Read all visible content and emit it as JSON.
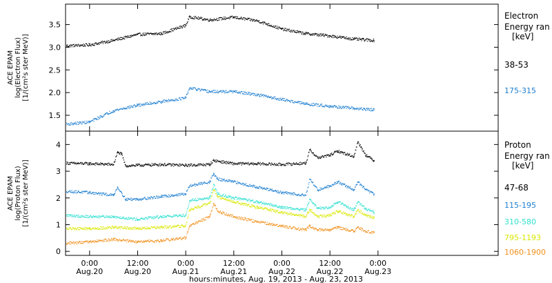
{
  "chart_data": {
    "type": "scatter",
    "xlabel": "hours:minutes, Aug. 19, 2013 - Aug. 23, 2013",
    "x_range_hours": [
      -6,
      102
    ],
    "x_ticks": [
      {
        "hours": 0,
        "time": "0:00",
        "date": "Aug.20"
      },
      {
        "hours": 12,
        "time": "12:00",
        "date": "Aug.20"
      },
      {
        "hours": 24,
        "time": "0:00",
        "date": "Aug.21"
      },
      {
        "hours": 36,
        "time": "12:00",
        "date": "Aug.21"
      },
      {
        "hours": 48,
        "time": "0:00",
        "date": "Aug.22"
      },
      {
        "hours": 60,
        "time": "12:00",
        "date": "Aug.22"
      },
      {
        "hours": 72,
        "time": "0:00",
        "date": "Aug.23"
      }
    ],
    "panels": [
      {
        "id": "electron",
        "ylabel_lines": [
          "ACE EPAM",
          "log(Electron Flux)",
          "[1/(cm²s ster MeV)]"
        ],
        "ylim": [
          1.15,
          3.95
        ],
        "y_ticks": [
          "1.5",
          "2.0",
          "2.5",
          "3.0",
          "3.5"
        ],
        "legend_title_lines": [
          "Electron",
          "Energy ran",
          "[keV]"
        ],
        "series": [
          {
            "name": "38-53",
            "color": "#000000",
            "x": [
              -6,
              0,
              6,
              12,
              18,
              24,
              25,
              30,
              36,
              42,
              48,
              54,
              60,
              66,
              71
            ],
            "y": [
              3.03,
              3.05,
              3.15,
              3.28,
              3.3,
              3.48,
              3.67,
              3.6,
              3.66,
              3.58,
              3.4,
              3.3,
              3.25,
              3.18,
              3.15
            ]
          },
          {
            "name": "175-315",
            "color": "#1f7fd0",
            "x": [
              -6,
              0,
              6,
              12,
              18,
              24,
              25,
              30,
              36,
              42,
              48,
              54,
              60,
              66,
              71
            ],
            "y": [
              1.3,
              1.35,
              1.6,
              1.72,
              1.8,
              1.88,
              2.1,
              2.02,
              2.02,
              1.95,
              1.85,
              1.75,
              1.7,
              1.65,
              1.62
            ]
          }
        ]
      },
      {
        "id": "proton",
        "ylabel_lines": [
          "ACE EPAM",
          "log(Proton Flux)",
          "[1/(cm²s ster MeV)]"
        ],
        "ylim": [
          -0.15,
          4.5
        ],
        "y_ticks": [
          "0",
          "1",
          "2",
          "3",
          "4"
        ],
        "legend_title_lines": [
          "Proton",
          "Energy ran",
          "[keV]"
        ],
        "series": [
          {
            "name": "47-68",
            "color": "#000000",
            "x": [
              -6,
              0,
              6,
              7,
              8,
              9,
              12,
              18,
              24,
              30,
              31,
              36,
              42,
              48,
              54,
              55,
              57,
              60,
              62,
              66,
              67,
              69,
              71
            ],
            "y": [
              3.3,
              3.28,
              3.25,
              3.7,
              3.65,
              3.2,
              3.22,
              3.25,
              3.22,
              3.25,
              3.4,
              3.28,
              3.28,
              3.25,
              3.3,
              3.8,
              3.5,
              3.6,
              3.75,
              3.55,
              4.1,
              3.6,
              3.4
            ]
          },
          {
            "name": "115-195",
            "color": "#1f7fd0",
            "x": [
              -6,
              0,
              6,
              7,
              8,
              9,
              12,
              18,
              24,
              25,
              30,
              31,
              32,
              36,
              42,
              48,
              54,
              55,
              57,
              60,
              62,
              66,
              67,
              69,
              71
            ],
            "y": [
              2.25,
              2.2,
              2.1,
              2.4,
              2.2,
              1.95,
              1.95,
              2.05,
              2.15,
              2.45,
              2.6,
              2.9,
              2.7,
              2.6,
              2.4,
              2.2,
              2.1,
              2.7,
              2.3,
              2.45,
              2.6,
              2.3,
              2.6,
              2.3,
              2.15
            ]
          },
          {
            "name": "310-580",
            "color": "#30e0d0",
            "x": [
              -6,
              0,
              6,
              12,
              18,
              24,
              25,
              30,
              31,
              32,
              36,
              42,
              48,
              54,
              55,
              57,
              60,
              62,
              66,
              67,
              69,
              71
            ],
            "y": [
              1.35,
              1.3,
              1.3,
              1.2,
              1.3,
              1.35,
              1.9,
              2.0,
              2.5,
              2.15,
              2.0,
              1.85,
              1.65,
              1.55,
              1.95,
              1.6,
              1.65,
              1.85,
              1.55,
              1.85,
              1.6,
              1.45
            ]
          },
          {
            "name": "795-1193",
            "color": "#d8e800",
            "x": [
              -6,
              0,
              6,
              12,
              18,
              24,
              25,
              30,
              31,
              32,
              36,
              42,
              48,
              54,
              55,
              57,
              60,
              62,
              66,
              67,
              69,
              71
            ],
            "y": [
              0.85,
              0.85,
              0.9,
              0.85,
              0.9,
              0.95,
              1.55,
              1.8,
              2.3,
              2.05,
              1.85,
              1.65,
              1.45,
              1.3,
              1.55,
              1.3,
              1.35,
              1.5,
              1.3,
              1.55,
              1.35,
              1.25
            ]
          },
          {
            "name": "1060-1900",
            "color": "#f0901c",
            "x": [
              -6,
              0,
              6,
              12,
              18,
              24,
              25,
              30,
              31,
              32,
              36,
              42,
              48,
              54,
              55,
              57,
              60,
              62,
              66,
              67,
              69,
              71
            ],
            "y": [
              0.3,
              0.35,
              0.45,
              0.35,
              0.4,
              0.5,
              0.95,
              1.3,
              1.8,
              1.5,
              1.3,
              1.1,
              0.95,
              0.8,
              0.95,
              0.8,
              0.8,
              0.9,
              0.75,
              0.9,
              0.75,
              0.7
            ]
          }
        ]
      }
    ]
  }
}
